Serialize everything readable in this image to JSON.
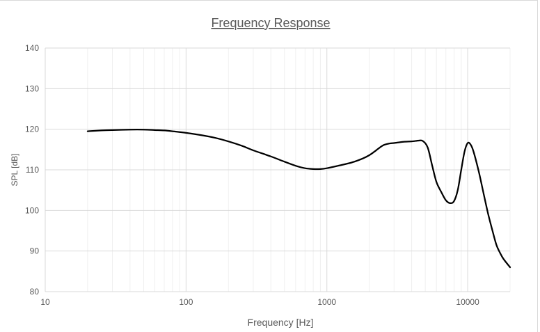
{
  "chart_data": {
    "type": "line",
    "title": "Frequency Response",
    "xlabel": "Frequency [Hz]",
    "ylabel": "SPL [dB]",
    "x_scale": "log",
    "xlim": [
      10,
      20000
    ],
    "ylim": [
      80,
      140
    ],
    "x_ticks": [
      10,
      100,
      1000,
      10000
    ],
    "x_tick_labels": [
      "10",
      "100",
      "1000",
      "10000"
    ],
    "y_ticks": [
      80,
      90,
      100,
      110,
      120,
      130,
      140
    ],
    "y_tick_labels": [
      "80",
      "90",
      "100",
      "110",
      "120",
      "130",
      "140"
    ],
    "grid": true,
    "legend": "none",
    "line_color": "#000000",
    "series": [
      {
        "x": [
          20,
          25,
          30,
          40,
          50,
          60,
          70,
          80,
          100,
          130,
          160,
          200,
          250,
          300,
          400,
          500,
          600,
          700,
          800,
          900,
          1000,
          1200,
          1500,
          1800,
          2000,
          2200,
          2500,
          2800,
          3000,
          3500,
          4000,
          4500,
          4800,
          5200,
          5600,
          6000,
          6500,
          7000,
          7500,
          8000,
          8500,
          9000,
          9500,
          10000,
          10500,
          11000,
          12000,
          13000,
          14000,
          15000,
          16000,
          17000,
          18000,
          20000
        ],
        "y": [
          119.5,
          119.7,
          119.8,
          119.9,
          119.9,
          119.8,
          119.7,
          119.5,
          119.1,
          118.5,
          117.9,
          117.0,
          115.9,
          114.8,
          113.3,
          112.0,
          111.0,
          110.4,
          110.2,
          110.2,
          110.4,
          111.0,
          111.8,
          112.8,
          113.6,
          114.6,
          116.0,
          116.5,
          116.6,
          116.9,
          117.0,
          117.2,
          117.1,
          115.5,
          111.0,
          107.0,
          104.5,
          102.5,
          101.8,
          102.3,
          105.0,
          110.0,
          114.5,
          116.6,
          116.2,
          114.5,
          109.5,
          104.0,
          99.0,
          95.0,
          91.5,
          89.5,
          88.0,
          86.0
        ]
      }
    ]
  }
}
